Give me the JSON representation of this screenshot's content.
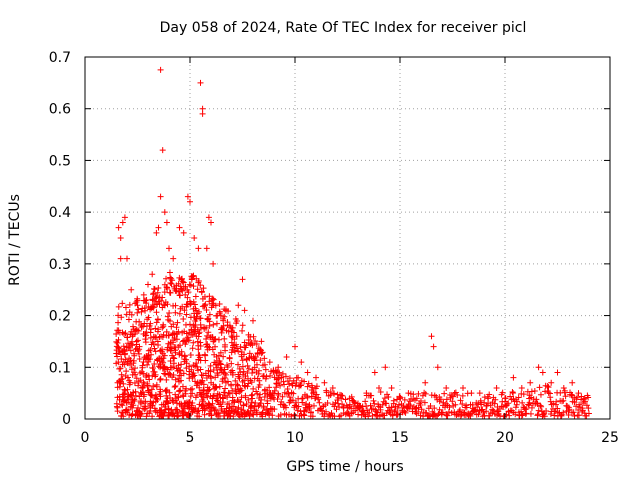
{
  "chart_data": {
    "type": "scatter",
    "title": "Day 058 of 2024, Rate Of TEC Index for receiver picl",
    "xlabel": "GPS time / hours",
    "ylabel": "ROTI / TECUs",
    "xlim": [
      0,
      25
    ],
    "ylim": [
      0,
      0.7
    ],
    "xticks": [
      0,
      5,
      10,
      15,
      20,
      25
    ],
    "xtick_labels": [
      "0",
      "5",
      "10",
      "15",
      "20",
      "25"
    ],
    "yticks": [
      0,
      0.1,
      0.2,
      0.3,
      0.4,
      0.5,
      0.6,
      0.7
    ],
    "ytick_labels": [
      "0",
      "0.1",
      "0.2",
      "0.3",
      "0.4",
      "0.5",
      "0.6",
      "0.7"
    ],
    "grid": true,
    "marker": "+",
    "marker_color": "#ff0000",
    "series": [
      {
        "name": "ROTI",
        "points": [
          [
            1.6,
            0.37
          ],
          [
            1.7,
            0.35
          ],
          [
            1.7,
            0.31
          ],
          [
            1.8,
            0.38
          ],
          [
            1.9,
            0.39
          ],
          [
            2.0,
            0.31
          ],
          [
            2.2,
            0.25
          ],
          [
            2.5,
            0.22
          ],
          [
            2.8,
            0.24
          ],
          [
            3.0,
            0.26
          ],
          [
            3.2,
            0.28
          ],
          [
            3.4,
            0.36
          ],
          [
            3.5,
            0.37
          ],
          [
            3.6,
            0.675
          ],
          [
            3.6,
            0.43
          ],
          [
            3.7,
            0.52
          ],
          [
            3.8,
            0.4
          ],
          [
            3.9,
            0.38
          ],
          [
            4.0,
            0.33
          ],
          [
            4.2,
            0.31
          ],
          [
            4.5,
            0.37
          ],
          [
            4.7,
            0.36
          ],
          [
            4.9,
            0.43
          ],
          [
            5.0,
            0.42
          ],
          [
            5.2,
            0.35
          ],
          [
            5.4,
            0.33
          ],
          [
            5.5,
            0.65
          ],
          [
            5.6,
            0.6
          ],
          [
            5.6,
            0.59
          ],
          [
            5.8,
            0.33
          ],
          [
            5.9,
            0.39
          ],
          [
            6.0,
            0.38
          ],
          [
            6.1,
            0.3
          ],
          [
            6.3,
            0.2
          ],
          [
            6.6,
            0.18
          ],
          [
            7.0,
            0.17
          ],
          [
            7.3,
            0.22
          ],
          [
            7.5,
            0.27
          ],
          [
            7.6,
            0.21
          ],
          [
            8.0,
            0.19
          ],
          [
            8.4,
            0.15
          ],
          [
            8.8,
            0.11
          ],
          [
            9.2,
            0.1
          ],
          [
            9.6,
            0.12
          ],
          [
            10.0,
            0.14
          ],
          [
            10.3,
            0.11
          ],
          [
            10.6,
            0.09
          ],
          [
            11.0,
            0.08
          ],
          [
            11.4,
            0.07
          ],
          [
            11.8,
            0.06
          ],
          [
            12.2,
            0.04
          ],
          [
            12.6,
            0.04
          ],
          [
            13.0,
            0.03
          ],
          [
            13.4,
            0.05
          ],
          [
            13.8,
            0.09
          ],
          [
            14.0,
            0.06
          ],
          [
            14.3,
            0.1
          ],
          [
            14.6,
            0.06
          ],
          [
            15.0,
            0.04
          ],
          [
            15.4,
            0.05
          ],
          [
            15.8,
            0.04
          ],
          [
            16.2,
            0.07
          ],
          [
            16.5,
            0.16
          ],
          [
            16.6,
            0.14
          ],
          [
            16.8,
            0.1
          ],
          [
            17.2,
            0.06
          ],
          [
            17.6,
            0.05
          ],
          [
            18.0,
            0.06
          ],
          [
            18.4,
            0.05
          ],
          [
            18.8,
            0.05
          ],
          [
            19.2,
            0.04
          ],
          [
            19.6,
            0.06
          ],
          [
            20.0,
            0.04
          ],
          [
            20.4,
            0.08
          ],
          [
            20.8,
            0.06
          ],
          [
            21.2,
            0.07
          ],
          [
            21.6,
            0.1
          ],
          [
            21.8,
            0.09
          ],
          [
            22.2,
            0.07
          ],
          [
            22.5,
            0.09
          ],
          [
            22.8,
            0.06
          ],
          [
            23.2,
            0.07
          ],
          [
            23.5,
            0.05
          ],
          [
            23.8,
            0.04
          ]
        ]
      }
    ],
    "band": {
      "description": "dense cloud of ROTI samples from 1.5 to 24 hours",
      "envelope_x": [
        1.5,
        2.0,
        3.0,
        4.0,
        5.0,
        6.0,
        7.0,
        8.0,
        9.0,
        10.0,
        11.0,
        12.0,
        13.0,
        14.0,
        15.0,
        16.0,
        17.0,
        18.0,
        19.0,
        20.0,
        21.0,
        22.0,
        23.0,
        24.0
      ],
      "envelope_y": [
        0.22,
        0.22,
        0.24,
        0.28,
        0.28,
        0.24,
        0.2,
        0.16,
        0.09,
        0.08,
        0.06,
        0.045,
        0.035,
        0.05,
        0.04,
        0.05,
        0.045,
        0.05,
        0.04,
        0.05,
        0.05,
        0.06,
        0.05,
        0.04
      ]
    }
  }
}
